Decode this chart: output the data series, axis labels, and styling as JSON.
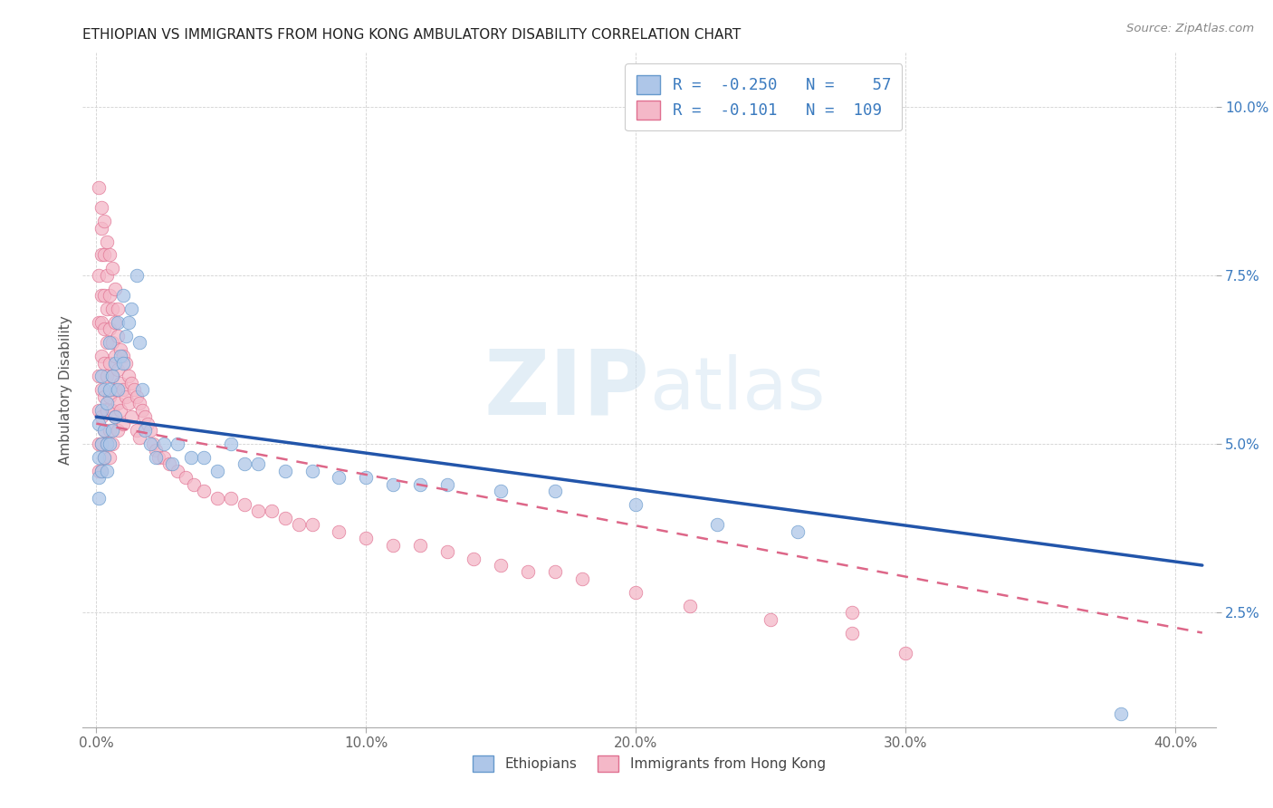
{
  "title": "ETHIOPIAN VS IMMIGRANTS FROM HONG KONG AMBULATORY DISABILITY CORRELATION CHART",
  "source": "Source: ZipAtlas.com",
  "xlabel_ticks": [
    "0.0%",
    "10.0%",
    "20.0%",
    "30.0%",
    "40.0%"
  ],
  "xlabel_tick_vals": [
    0.0,
    0.1,
    0.2,
    0.3,
    0.4
  ],
  "ylabel_ticks": [
    "2.5%",
    "5.0%",
    "7.5%",
    "10.0%"
  ],
  "ylabel_tick_vals": [
    0.025,
    0.05,
    0.075,
    0.1
  ],
  "xlim": [
    -0.005,
    0.415
  ],
  "ylim": [
    0.008,
    0.108
  ],
  "ylabel": "Ambulatory Disability",
  "legend_labels": [
    "Ethiopians",
    "Immigrants from Hong Kong"
  ],
  "R_ethiopian": -0.25,
  "N_ethiopian": 57,
  "R_hongkong": -0.101,
  "N_hongkong": 109,
  "color_ethiopian": "#aec6e8",
  "color_hongkong": "#f4b8c8",
  "edge_ethiopian": "#6699cc",
  "edge_hongkong": "#e07090",
  "line_color_ethiopian": "#2255aa",
  "line_color_hongkong": "#dd6688",
  "eth_line_x0": 0.0,
  "eth_line_y0": 0.054,
  "eth_line_x1": 0.41,
  "eth_line_y1": 0.032,
  "hk_line_x0": 0.0,
  "hk_line_y0": 0.053,
  "hk_line_x1": 0.41,
  "hk_line_y1": 0.022,
  "ethiopian_x": [
    0.001,
    0.001,
    0.001,
    0.001,
    0.002,
    0.002,
    0.002,
    0.002,
    0.003,
    0.003,
    0.003,
    0.004,
    0.004,
    0.004,
    0.005,
    0.005,
    0.005,
    0.006,
    0.006,
    0.007,
    0.007,
    0.008,
    0.008,
    0.009,
    0.01,
    0.01,
    0.011,
    0.012,
    0.013,
    0.015,
    0.016,
    0.017,
    0.018,
    0.02,
    0.022,
    0.025,
    0.028,
    0.03,
    0.035,
    0.04,
    0.045,
    0.05,
    0.055,
    0.06,
    0.07,
    0.08,
    0.09,
    0.1,
    0.11,
    0.12,
    0.13,
    0.15,
    0.17,
    0.2,
    0.23,
    0.26,
    0.38
  ],
  "ethiopian_y": [
    0.053,
    0.048,
    0.045,
    0.042,
    0.06,
    0.055,
    0.05,
    0.046,
    0.058,
    0.052,
    0.048,
    0.056,
    0.05,
    0.046,
    0.065,
    0.058,
    0.05,
    0.06,
    0.052,
    0.062,
    0.054,
    0.068,
    0.058,
    0.063,
    0.072,
    0.062,
    0.066,
    0.068,
    0.07,
    0.075,
    0.065,
    0.058,
    0.052,
    0.05,
    0.048,
    0.05,
    0.047,
    0.05,
    0.048,
    0.048,
    0.046,
    0.05,
    0.047,
    0.047,
    0.046,
    0.046,
    0.045,
    0.045,
    0.044,
    0.044,
    0.044,
    0.043,
    0.043,
    0.041,
    0.038,
    0.037,
    0.01
  ],
  "hongkong_x": [
    0.001,
    0.001,
    0.001,
    0.001,
    0.001,
    0.001,
    0.002,
    0.002,
    0.002,
    0.002,
    0.002,
    0.002,
    0.002,
    0.002,
    0.002,
    0.003,
    0.003,
    0.003,
    0.003,
    0.003,
    0.003,
    0.003,
    0.004,
    0.004,
    0.004,
    0.004,
    0.004,
    0.004,
    0.005,
    0.005,
    0.005,
    0.005,
    0.005,
    0.005,
    0.006,
    0.006,
    0.006,
    0.006,
    0.006,
    0.007,
    0.007,
    0.007,
    0.007,
    0.008,
    0.008,
    0.008,
    0.008,
    0.009,
    0.009,
    0.009,
    0.01,
    0.01,
    0.01,
    0.011,
    0.011,
    0.012,
    0.012,
    0.013,
    0.013,
    0.014,
    0.015,
    0.015,
    0.016,
    0.016,
    0.017,
    0.018,
    0.019,
    0.02,
    0.021,
    0.022,
    0.023,
    0.025,
    0.027,
    0.03,
    0.033,
    0.036,
    0.04,
    0.045,
    0.05,
    0.055,
    0.06,
    0.065,
    0.07,
    0.075,
    0.08,
    0.09,
    0.1,
    0.11,
    0.12,
    0.13,
    0.14,
    0.15,
    0.16,
    0.17,
    0.18,
    0.2,
    0.22,
    0.25,
    0.28,
    0.3,
    0.001,
    0.002,
    0.003,
    0.004,
    0.005,
    0.006,
    0.007,
    0.008,
    0.28
  ],
  "hongkong_y": [
    0.075,
    0.068,
    0.06,
    0.055,
    0.05,
    0.046,
    0.082,
    0.078,
    0.072,
    0.068,
    0.063,
    0.058,
    0.054,
    0.05,
    0.046,
    0.078,
    0.072,
    0.067,
    0.062,
    0.057,
    0.052,
    0.048,
    0.075,
    0.07,
    0.065,
    0.06,
    0.055,
    0.05,
    0.072,
    0.067,
    0.062,
    0.057,
    0.052,
    0.048,
    0.07,
    0.065,
    0.06,
    0.055,
    0.05,
    0.068,
    0.063,
    0.058,
    0.054,
    0.066,
    0.061,
    0.056,
    0.052,
    0.064,
    0.059,
    0.055,
    0.063,
    0.058,
    0.053,
    0.062,
    0.057,
    0.06,
    0.056,
    0.059,
    0.054,
    0.058,
    0.057,
    0.052,
    0.056,
    0.051,
    0.055,
    0.054,
    0.053,
    0.052,
    0.05,
    0.049,
    0.048,
    0.048,
    0.047,
    0.046,
    0.045,
    0.044,
    0.043,
    0.042,
    0.042,
    0.041,
    0.04,
    0.04,
    0.039,
    0.038,
    0.038,
    0.037,
    0.036,
    0.035,
    0.035,
    0.034,
    0.033,
    0.032,
    0.031,
    0.031,
    0.03,
    0.028,
    0.026,
    0.024,
    0.022,
    0.019,
    0.088,
    0.085,
    0.083,
    0.08,
    0.078,
    0.076,
    0.073,
    0.07,
    0.025
  ]
}
